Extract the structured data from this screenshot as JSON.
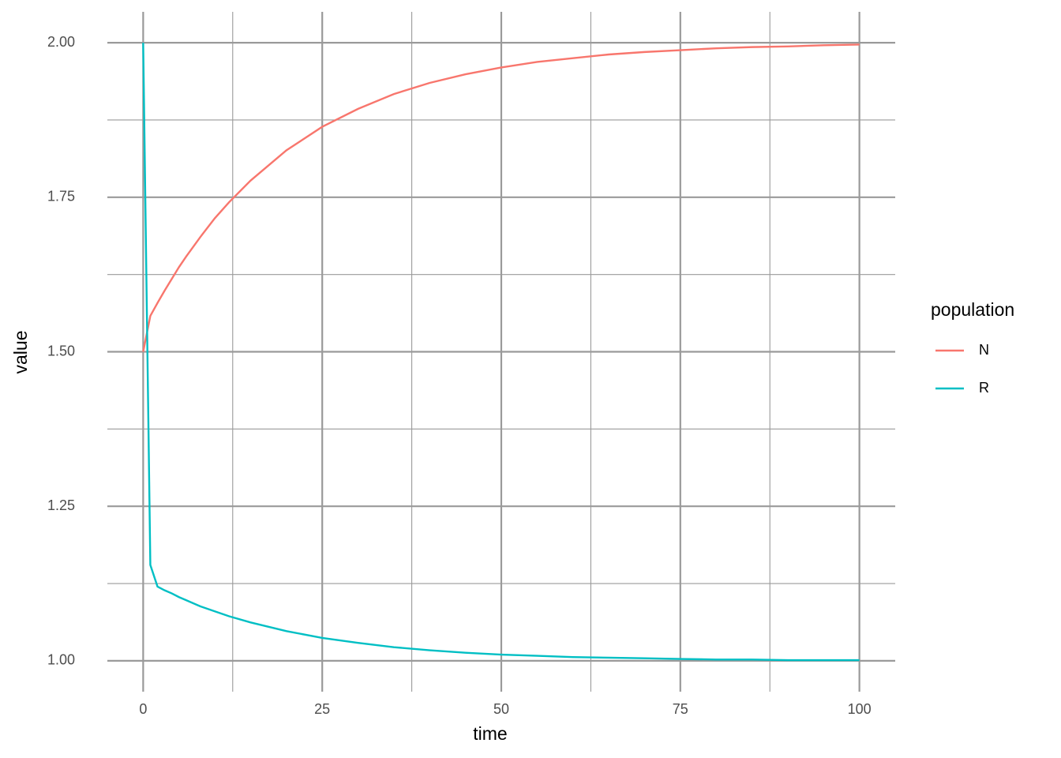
{
  "chart_data": {
    "type": "line",
    "x_label": "time",
    "y_label": "value",
    "legend_title": "population",
    "x": [
      0,
      1,
      2,
      3,
      4,
      5,
      6,
      8,
      10,
      12,
      15,
      20,
      25,
      30,
      35,
      40,
      45,
      50,
      55,
      60,
      65,
      70,
      75,
      80,
      85,
      90,
      95,
      100
    ],
    "series": [
      {
        "name": "N",
        "color": "#F8766D",
        "values": [
          1.5,
          1.558,
          1.579,
          1.599,
          1.618,
          1.637,
          1.654,
          1.686,
          1.716,
          1.742,
          1.777,
          1.826,
          1.864,
          1.893,
          1.917,
          1.935,
          1.949,
          1.96,
          1.969,
          1.975,
          1.981,
          1.985,
          1.988,
          1.991,
          1.993,
          1.994,
          1.996,
          1.997
        ]
      },
      {
        "name": "R",
        "color": "#00BFC4",
        "values": [
          2.0,
          1.155,
          1.12,
          1.114,
          1.109,
          1.103,
          1.098,
          1.088,
          1.08,
          1.072,
          1.062,
          1.048,
          1.037,
          1.029,
          1.022,
          1.017,
          1.013,
          1.01,
          1.008,
          1.006,
          1.005,
          1.004,
          1.003,
          1.002,
          1.002,
          1.001,
          1.001,
          1.001
        ]
      }
    ],
    "xlim": [
      -5,
      105
    ],
    "ylim": [
      0.95,
      2.05
    ],
    "xticks": [
      0,
      25,
      50,
      75,
      100
    ],
    "yticks": [
      {
        "value": 1,
        "label": "1.00"
      },
      1.25,
      {
        "value": 1.5,
        "label": "1.50"
      },
      1.75,
      {
        "value": 2,
        "label": "2.00"
      }
    ],
    "x_minor_breaks": [
      12.5,
      37.5,
      62.5,
      87.5
    ],
    "y_minor_breaks": [
      1.125,
      1.375,
      1.625,
      1.875
    ],
    "grid": true
  }
}
